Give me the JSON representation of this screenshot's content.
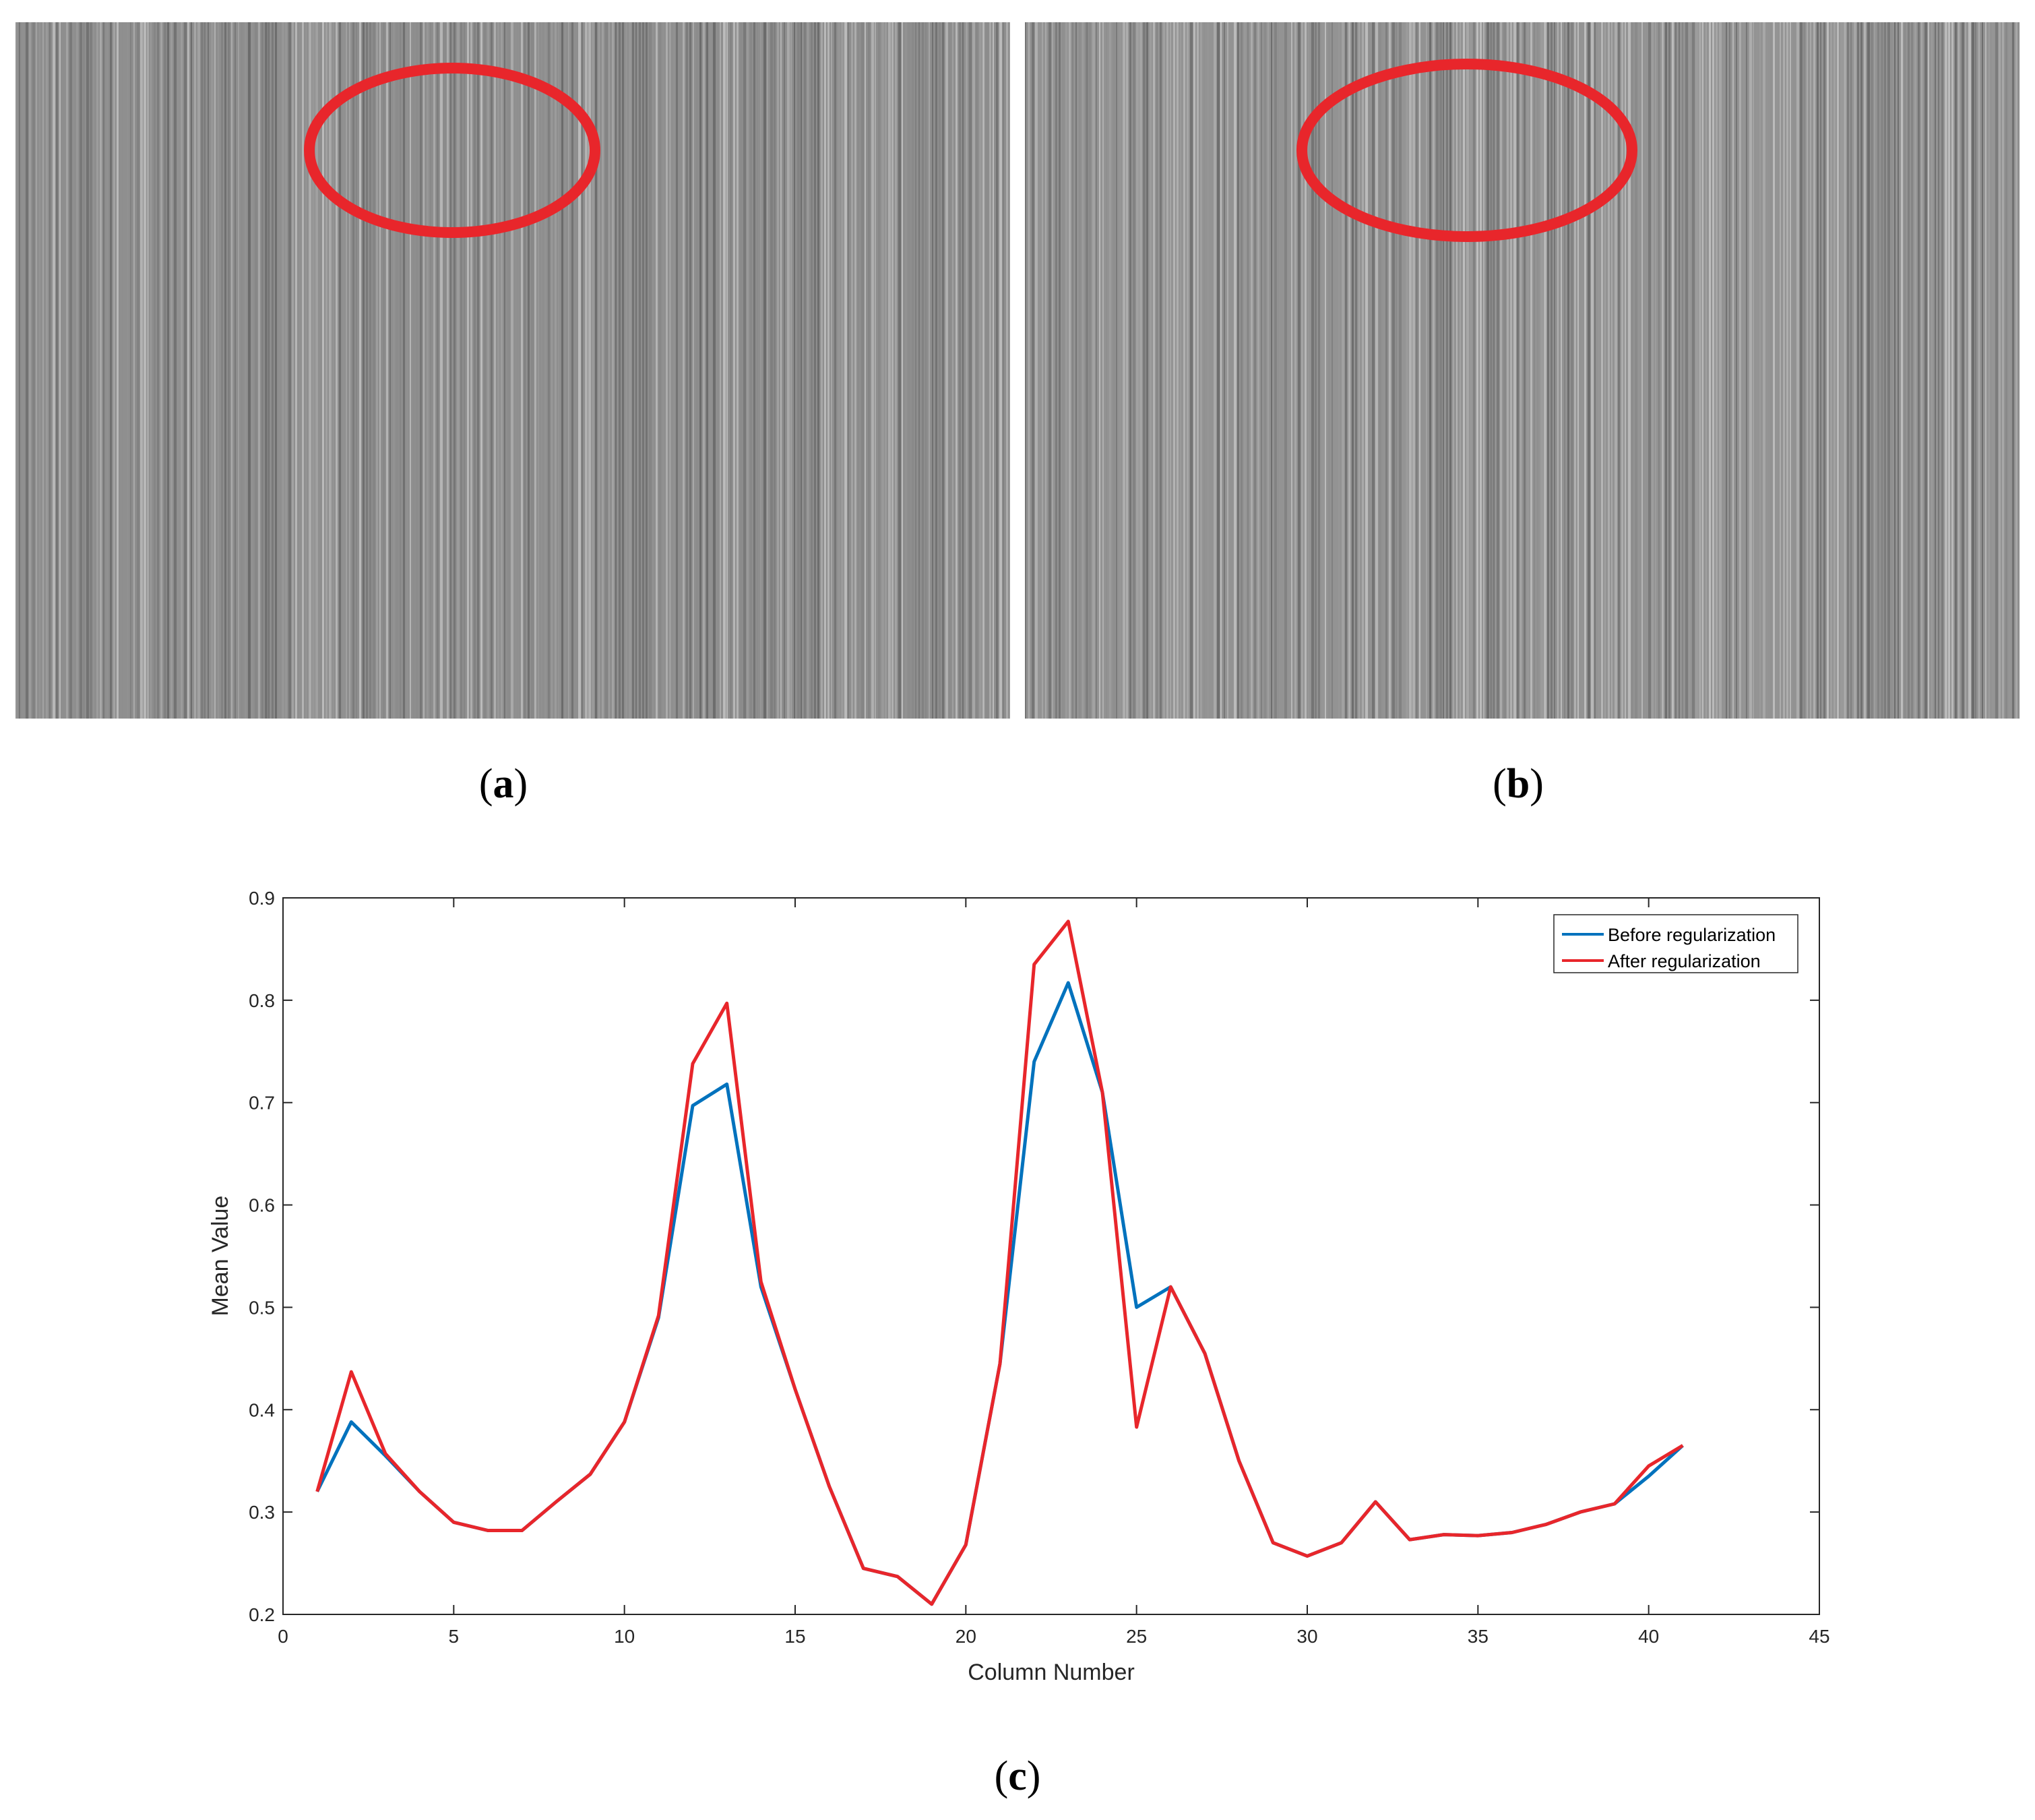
{
  "panels": {
    "a": {
      "label": "a",
      "highlight_color": "#e8262b"
    },
    "b": {
      "label": "b",
      "highlight_color": "#e8262b"
    },
    "c": {
      "label": "c"
    }
  },
  "chart_data": {
    "type": "line",
    "title": "",
    "xlabel": "Column Number",
    "ylabel": "Mean Value",
    "xlim": [
      0,
      45
    ],
    "ylim": [
      0.2,
      0.9
    ],
    "xticks": [
      0,
      5,
      10,
      15,
      20,
      25,
      30,
      35,
      40,
      45
    ],
    "yticks": [
      0.2,
      0.3,
      0.4,
      0.5,
      0.6,
      0.7,
      0.8,
      0.9
    ],
    "grid": false,
    "legend_position": "top-right",
    "x": [
      1,
      2,
      3,
      4,
      5,
      6,
      7,
      8,
      9,
      10,
      11,
      12,
      13,
      14,
      15,
      16,
      17,
      18,
      19,
      20,
      21,
      22,
      23,
      24,
      25,
      26,
      27,
      28,
      29,
      30,
      31,
      32,
      33,
      34,
      35,
      36,
      37,
      38,
      39,
      40,
      41
    ],
    "series": [
      {
        "name": "Before regularization",
        "color": "#0072bd",
        "values": [
          0.32,
          0.388,
          0.355,
          0.32,
          0.29,
          0.282,
          0.282,
          0.31,
          0.337,
          0.388,
          0.49,
          0.697,
          0.718,
          0.52,
          0.42,
          0.325,
          0.245,
          0.237,
          0.21,
          0.268,
          0.445,
          0.74,
          0.817,
          0.71,
          0.5,
          0.52,
          0.455,
          0.35,
          0.27,
          0.257,
          0.27,
          0.31,
          0.273,
          0.278,
          0.277,
          0.28,
          0.288,
          0.3,
          0.308,
          0.335,
          0.365
        ]
      },
      {
        "name": "After regularization",
        "color": "#e8262b",
        "values": [
          0.32,
          0.437,
          0.357,
          0.32,
          0.29,
          0.282,
          0.282,
          0.31,
          0.337,
          0.388,
          0.492,
          0.738,
          0.797,
          0.525,
          0.42,
          0.325,
          0.245,
          0.237,
          0.21,
          0.268,
          0.445,
          0.835,
          0.877,
          0.71,
          0.383,
          0.52,
          0.455,
          0.35,
          0.27,
          0.257,
          0.27,
          0.31,
          0.273,
          0.278,
          0.277,
          0.28,
          0.288,
          0.3,
          0.308,
          0.345,
          0.365
        ]
      }
    ]
  }
}
